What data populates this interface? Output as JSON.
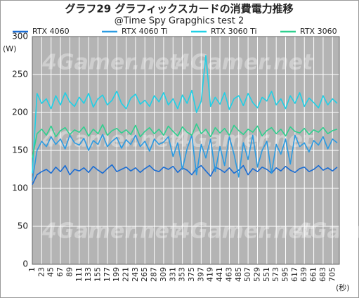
{
  "chart_data": {
    "type": "line",
    "title": "グラフ29 グラフィックスカードの消費電力推移",
    "subtitle": "@Time Spy Grapghics test 2",
    "y_label": "(W)",
    "x_label": "(秒)",
    "watermark": "4Gamer.net",
    "grid": true,
    "x": [
      1,
      12,
      23,
      34,
      45,
      56,
      67,
      78,
      89,
      100,
      111,
      122,
      133,
      144,
      155,
      166,
      177,
      188,
      199,
      210,
      221,
      232,
      243,
      254,
      265,
      276,
      287,
      298,
      309,
      320,
      331,
      342,
      353,
      364,
      375,
      386,
      397,
      408,
      419,
      430,
      441,
      452,
      463,
      474,
      485,
      496,
      507,
      518,
      529,
      540,
      551,
      562,
      573,
      584,
      595,
      606,
      617,
      628,
      639,
      650,
      661,
      672,
      683,
      694,
      705,
      716
    ],
    "xlim": [
      1,
      721
    ],
    "xticks": [
      1,
      23,
      45,
      67,
      89,
      111,
      133,
      155,
      177,
      199,
      221,
      243,
      265,
      287,
      309,
      331,
      353,
      375,
      397,
      419,
      441,
      463,
      485,
      507,
      529,
      551,
      573,
      595,
      617,
      639,
      661,
      683,
      705
    ],
    "ylim": [
      0,
      300
    ],
    "yticks": [
      0,
      50,
      100,
      150,
      200,
      250,
      300
    ],
    "series": [
      {
        "name": "RTX 4060",
        "color": "#1a6dd4",
        "values": [
          105,
          118,
          122,
          125,
          120,
          128,
          122,
          130,
          118,
          125,
          123,
          127,
          121,
          129,
          124,
          120,
          126,
          131,
          122,
          125,
          128,
          123,
          127,
          121,
          126,
          130,
          124,
          122,
          128,
          125,
          129,
          121,
          127,
          124,
          118,
          126,
          130,
          123,
          116,
          128,
          125,
          121,
          127,
          120,
          124,
          130,
          118,
          126,
          122,
          128,
          125,
          120,
          127,
          123,
          129,
          124,
          121,
          126,
          128,
          122,
          125,
          130,
          124,
          127,
          123,
          128
        ]
      },
      {
        "name": "RTX 4060 Ti",
        "color": "#2b9be2",
        "values": [
          110,
          150,
          162,
          155,
          168,
          158,
          165,
          152,
          170,
          160,
          157,
          166,
          150,
          163,
          158,
          171,
          155,
          162,
          167,
          153,
          164,
          158,
          170,
          155,
          162,
          149,
          165,
          158,
          161,
          168,
          142,
          160,
          125,
          152,
          170,
          118,
          158,
          140,
          165,
          122,
          155,
          130,
          168,
          145,
          115,
          160,
          138,
          170,
          128,
          150,
          162,
          120,
          158,
          145,
          165,
          132,
          170,
          155,
          160,
          148,
          163,
          157,
          168,
          152,
          165,
          160
        ]
      },
      {
        "name": "RTX 3060 Ti",
        "color": "#1fd0e6",
        "values": [
          120,
          225,
          212,
          218,
          205,
          222,
          210,
          226,
          214,
          208,
          220,
          212,
          225,
          207,
          218,
          223,
          210,
          216,
          228,
          212,
          205,
          219,
          224,
          211,
          216,
          208,
          222,
          214,
          226,
          210,
          218,
          205,
          223,
          212,
          229,
          200,
          215,
          275,
          208,
          220,
          211,
          226,
          204,
          218,
          222,
          209,
          225,
          213,
          206,
          220,
          215,
          228,
          210,
          218,
          205,
          222,
          212,
          226,
          208,
          219,
          213,
          206,
          222,
          210,
          218,
          212
        ]
      },
      {
        "name": "RTX 3060",
        "color": "#2fd08f",
        "values": [
          140,
          172,
          178,
          170,
          182,
          168,
          176,
          180,
          171,
          177,
          174,
          181,
          169,
          178,
          172,
          184,
          170,
          176,
          179,
          173,
          177,
          171,
          183,
          168,
          175,
          180,
          172,
          178,
          170,
          182,
          175,
          169,
          181,
          174,
          170,
          185,
          172,
          178,
          168,
          180,
          173,
          179,
          170,
          183,
          176,
          171,
          178,
          174,
          182,
          169,
          176,
          180,
          172,
          178,
          169,
          181,
          175,
          173,
          179,
          171,
          177,
          174,
          180,
          172,
          176,
          178
        ]
      }
    ]
  }
}
